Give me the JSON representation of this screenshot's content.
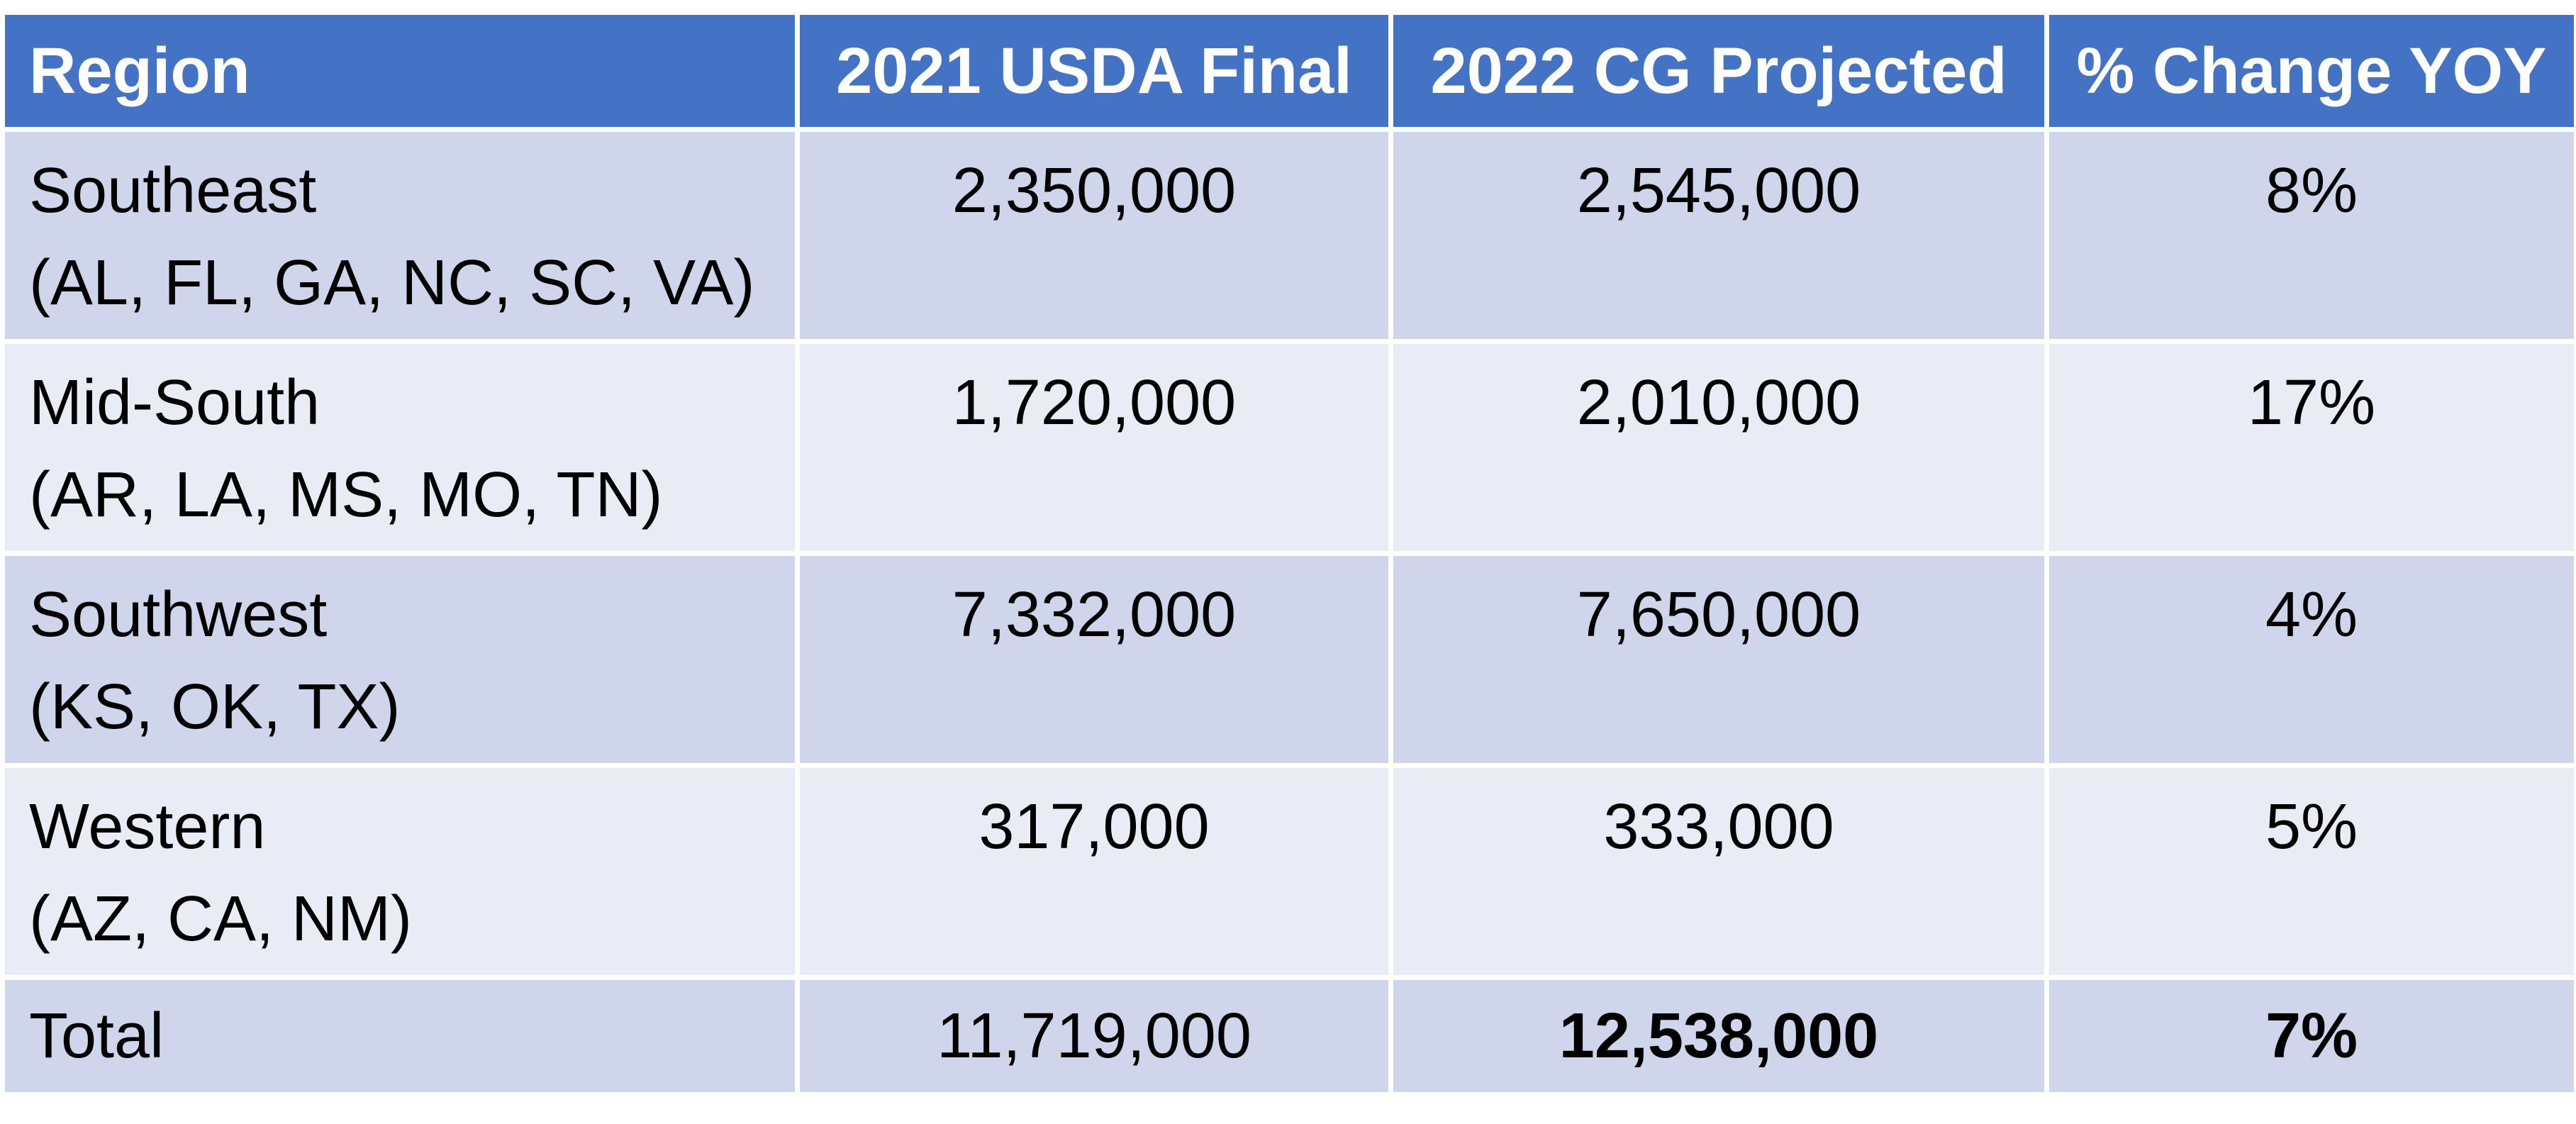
{
  "table": {
    "headers": [
      "Region",
      "2021 USDA Final",
      "2022 CG Projected",
      "% Change YOY"
    ],
    "rows": [
      {
        "region": "Southeast",
        "states": "(AL, FL, GA, NC, SC, VA)",
        "usda_2021": "2,350,000",
        "cg_2022": "2,545,000",
        "change": "8%"
      },
      {
        "region": "Mid-South",
        "states": "(AR, LA, MS, MO, TN)",
        "usda_2021": "1,720,000",
        "cg_2022": "2,010,000",
        "change": "17%"
      },
      {
        "region": "Southwest",
        "states": "(KS, OK, TX)",
        "usda_2021": "7,332,000",
        "cg_2022": "7,650,000",
        "change": "4%"
      },
      {
        "region": "Western",
        "states": "(AZ, CA, NM)",
        "usda_2021": "317,000",
        "cg_2022": "333,000",
        "change": "5%"
      }
    ],
    "total": {
      "label": "Total",
      "usda_2021": "11,719,000",
      "cg_2022": "12,538,000",
      "change": "7%"
    }
  },
  "colors": {
    "header_bg": "#4472C4",
    "band_dark": "#CFD5EA",
    "band_light": "#E9EBF5"
  }
}
